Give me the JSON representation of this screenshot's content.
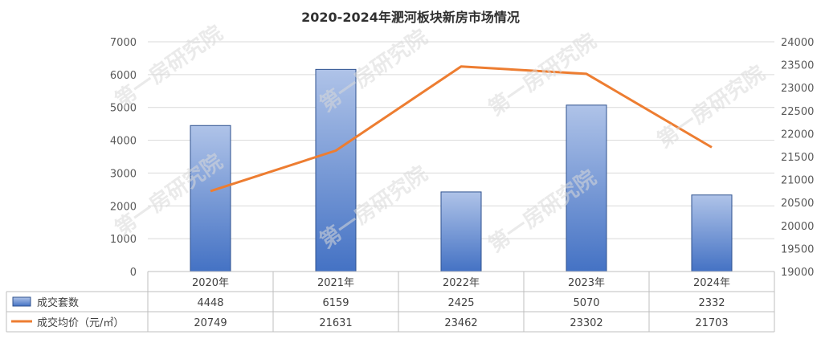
{
  "chart_data": {
    "type": "bar+line",
    "title": "2020-2024年淝河板块新房市场情况",
    "categories": [
      "2020年",
      "2021年",
      "2022年",
      "2023年",
      "2024年"
    ],
    "series": [
      {
        "name": "成交套数",
        "kind": "bar",
        "axis": "left",
        "color": "#4472C4",
        "values": [
          4448,
          6159,
          2425,
          5070,
          2332
        ]
      },
      {
        "name": "成交均价（元/㎡）",
        "kind": "line",
        "axis": "right",
        "color": "#ED7D31",
        "values": [
          20749,
          21631,
          23462,
          23302,
          21703
        ]
      }
    ],
    "y_left": {
      "min": 0,
      "max": 7000,
      "step": 1000,
      "ticks": [
        "0",
        "1000",
        "2000",
        "3000",
        "4000",
        "5000",
        "6000",
        "7000"
      ]
    },
    "y_right": {
      "min": 19000,
      "max": 24000,
      "step": 500,
      "ticks": [
        "19000",
        "19500",
        "20000",
        "20500",
        "21000",
        "21500",
        "22000",
        "22500",
        "23000",
        "23500",
        "24000"
      ]
    },
    "grid": true,
    "legend": "data-table"
  },
  "watermark": "第一房研究院"
}
